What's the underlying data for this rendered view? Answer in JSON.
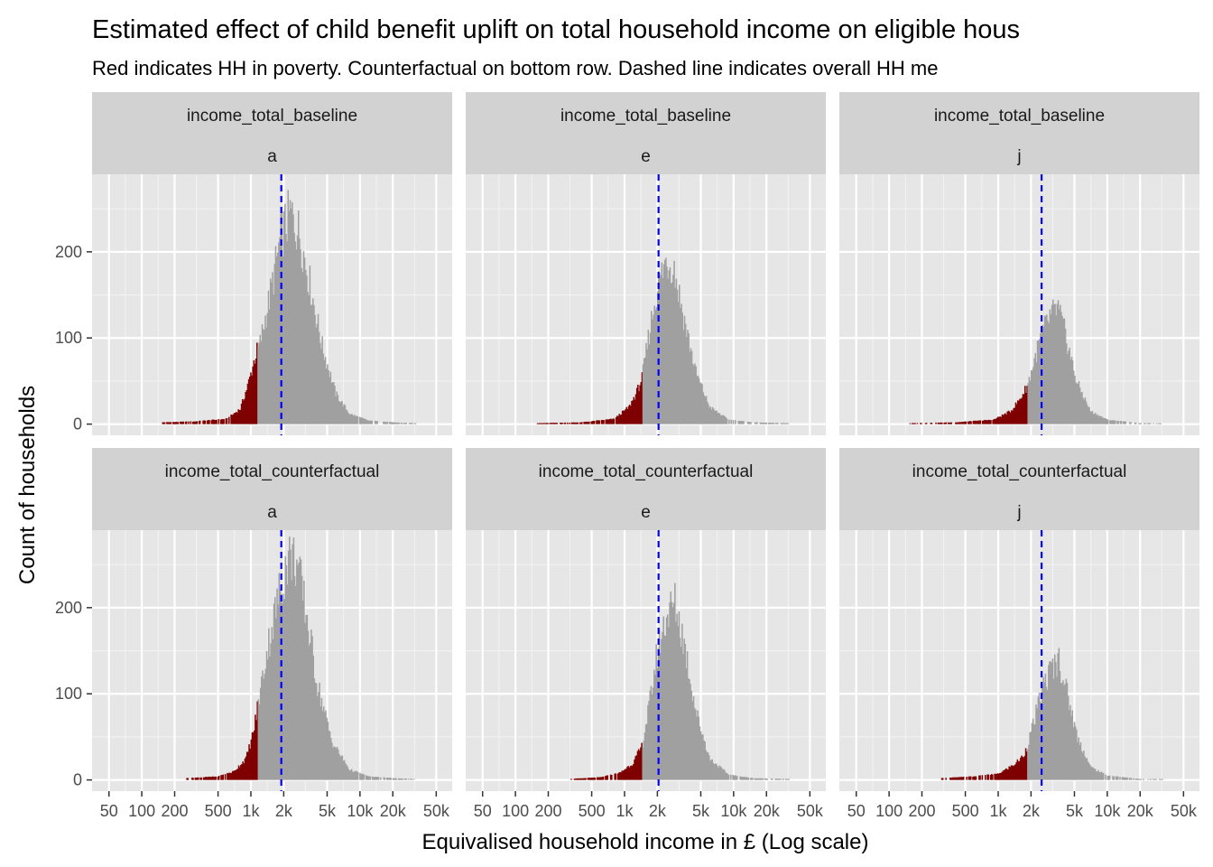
{
  "chart_data": {
    "type": "bar",
    "title": "Estimated effect of child benefit uplift on total household income on eligible hous",
    "subtitle": "Red indicates HH in poverty. Counterfactual on bottom row. Dashed line indicates overall HH me",
    "xlabel": "Equivalised household income in £ (Log scale)",
    "ylabel": "Count of households",
    "x_scale": "log10",
    "xlim": [
      35,
      70000
    ],
    "ylim": [
      -13,
      290
    ],
    "x_ticks": [
      {
        "value": 50,
        "label": "50"
      },
      {
        "value": 100,
        "label": "100"
      },
      {
        "value": 200,
        "label": "200"
      },
      {
        "value": 500,
        "label": "500"
      },
      {
        "value": 1000,
        "label": "1k"
      },
      {
        "value": 2000,
        "label": "2k"
      },
      {
        "value": 5000,
        "label": "5k"
      },
      {
        "value": 10000,
        "label": "10k"
      },
      {
        "value": 20000,
        "label": "20k"
      },
      {
        "value": 50000,
        "label": "50k"
      }
    ],
    "y_ticks": [
      {
        "value": 0,
        "label": "0"
      },
      {
        "value": 100,
        "label": "100"
      },
      {
        "value": 200,
        "label": "200"
      }
    ],
    "grid": true,
    "legend": "none",
    "colors": {
      "poverty": "#7f0000",
      "not_poverty": "#a0a0a0",
      "mean_line": "#0000ff",
      "panel_bg": "#e6e6e6",
      "strip_bg": "#d2d2d2"
    },
    "panels": [
      {
        "row": 0,
        "col": 0,
        "strip_top": "income_total_baseline",
        "strip_bottom": "a",
        "mean": 1900,
        "poverty_line": 1150,
        "x_start": 150,
        "x_end": 32000,
        "key_points": [
          [
            150,
            2
          ],
          [
            300,
            3
          ],
          [
            600,
            6
          ],
          [
            800,
            18
          ],
          [
            950,
            48
          ],
          [
            1100,
            80
          ],
          [
            1200,
            92
          ],
          [
            1500,
            150
          ],
          [
            1900,
            220
          ],
          [
            2300,
            245
          ],
          [
            2800,
            220
          ],
          [
            3500,
            160
          ],
          [
            4500,
            90
          ],
          [
            6000,
            35
          ],
          [
            8000,
            12
          ],
          [
            12000,
            4
          ],
          [
            20000,
            2
          ],
          [
            32000,
            1
          ]
        ]
      },
      {
        "row": 0,
        "col": 1,
        "strip_top": "income_total_baseline",
        "strip_bottom": "e",
        "mean": 2050,
        "poverty_line": 1450,
        "x_start": 150,
        "x_end": 32000,
        "key_points": [
          [
            150,
            1
          ],
          [
            400,
            2
          ],
          [
            800,
            6
          ],
          [
            1100,
            20
          ],
          [
            1300,
            38
          ],
          [
            1450,
            55
          ],
          [
            1700,
            110
          ],
          [
            2000,
            160
          ],
          [
            2400,
            190
          ],
          [
            2800,
            185
          ],
          [
            3400,
            130
          ],
          [
            4500,
            60
          ],
          [
            6000,
            20
          ],
          [
            9000,
            5
          ],
          [
            15000,
            2
          ],
          [
            32000,
            1
          ]
        ]
      },
      {
        "row": 0,
        "col": 2,
        "strip_top": "income_total_baseline",
        "strip_bottom": "j",
        "mean": 2500,
        "poverty_line": 1850,
        "x_start": 150,
        "x_end": 32000,
        "key_points": [
          [
            150,
            1
          ],
          [
            400,
            2
          ],
          [
            900,
            5
          ],
          [
            1300,
            15
          ],
          [
            1600,
            30
          ],
          [
            1850,
            45
          ],
          [
            2100,
            70
          ],
          [
            2500,
            105
          ],
          [
            3000,
            125
          ],
          [
            3500,
            135
          ],
          [
            4200,
            100
          ],
          [
            5200,
            50
          ],
          [
            7000,
            15
          ],
          [
            10000,
            5
          ],
          [
            20000,
            1
          ],
          [
            32000,
            1
          ]
        ]
      },
      {
        "row": 1,
        "col": 0,
        "strip_top": "income_total_counterfactual",
        "strip_bottom": "a",
        "mean": 1900,
        "poverty_line": 1150,
        "x_start": 250,
        "x_end": 32000,
        "key_points": [
          [
            250,
            2
          ],
          [
            500,
            4
          ],
          [
            700,
            10
          ],
          [
            900,
            25
          ],
          [
            1050,
            55
          ],
          [
            1150,
            85
          ],
          [
            1400,
            150
          ],
          [
            1800,
            215
          ],
          [
            2200,
            260
          ],
          [
            2600,
            255
          ],
          [
            3200,
            195
          ],
          [
            4000,
            115
          ],
          [
            5500,
            45
          ],
          [
            8000,
            12
          ],
          [
            12000,
            4
          ],
          [
            20000,
            2
          ],
          [
            32000,
            1
          ]
        ]
      },
      {
        "row": 1,
        "col": 1,
        "strip_top": "income_total_counterfactual",
        "strip_bottom": "e",
        "mean": 2050,
        "poverty_line": 1450,
        "x_start": 300,
        "x_end": 32000,
        "key_points": [
          [
            300,
            1
          ],
          [
            600,
            3
          ],
          [
            900,
            8
          ],
          [
            1200,
            20
          ],
          [
            1450,
            40
          ],
          [
            1700,
            90
          ],
          [
            2000,
            150
          ],
          [
            2400,
            190
          ],
          [
            2900,
            205
          ],
          [
            3500,
            160
          ],
          [
            4500,
            80
          ],
          [
            6000,
            25
          ],
          [
            9000,
            6
          ],
          [
            15000,
            2
          ],
          [
            32000,
            1
          ]
        ]
      },
      {
        "row": 1,
        "col": 2,
        "strip_top": "income_total_counterfactual",
        "strip_bottom": "j",
        "mean": 2500,
        "poverty_line": 1850,
        "x_start": 300,
        "x_end": 32000,
        "key_points": [
          [
            300,
            2
          ],
          [
            600,
            4
          ],
          [
            1000,
            7
          ],
          [
            1400,
            18
          ],
          [
            1700,
            28
          ],
          [
            1850,
            40
          ],
          [
            2200,
            75
          ],
          [
            2600,
            110
          ],
          [
            3100,
            130
          ],
          [
            3600,
            140
          ],
          [
            4300,
            100
          ],
          [
            5300,
            50
          ],
          [
            7000,
            15
          ],
          [
            10000,
            5
          ],
          [
            20000,
            1
          ],
          [
            32000,
            1
          ]
        ]
      }
    ]
  }
}
